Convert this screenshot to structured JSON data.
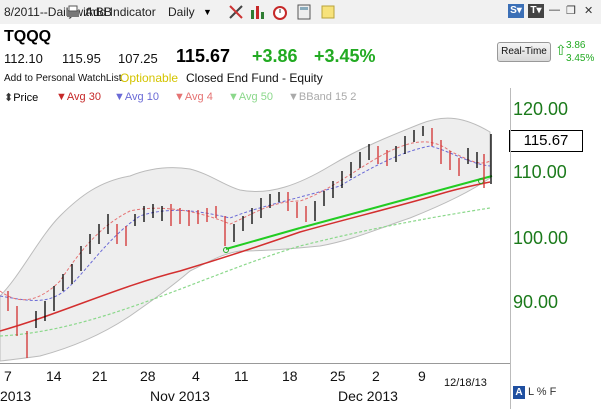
{
  "toolbar": {
    "title": "8/2011--DailywithBB",
    "add_indicator": "Add Indicator",
    "period": "Daily"
  },
  "quote": {
    "symbol": "TQQQ",
    "open": "112.10",
    "high": "115.95",
    "low": "107.25",
    "last": "115.67",
    "change": "+3.86",
    "change_pct": "+3.45%",
    "add_watchlist": "Add to Personal WatchList",
    "optionable": "Optionable",
    "description": "Closed End Fund - Equity",
    "realtime_label": "Real-Time",
    "rt_change": "3.86",
    "rt_change_pct": "3.45%"
  },
  "legend": [
    {
      "label": "Price",
      "color": "#000000"
    },
    {
      "label": "Avg 30",
      "color": "#c62828"
    },
    {
      "label": "Avg 10",
      "color": "#6a6ad6"
    },
    {
      "label": "Avg 4",
      "color": "#e57373"
    },
    {
      "label": "Avg 50",
      "color": "#8bd88b"
    },
    {
      "label": "BBand 15 2",
      "color": "#aaaaaa"
    }
  ],
  "chart_data": {
    "type": "line",
    "title": "",
    "ylim": [
      85,
      122
    ],
    "y_ticks": [
      "120.00",
      "110.00",
      "100.00",
      "90.00"
    ],
    "x_tick_labels": [
      "7",
      "14",
      "21",
      "28",
      "4",
      "11",
      "18",
      "25",
      "2",
      "9"
    ],
    "x_month_labels": [
      "2013",
      "Nov 2013",
      "Dec 2013"
    ],
    "date_stamp": "12/18/13",
    "last_price_box": "115.67",
    "bottom_right": "L % F"
  }
}
